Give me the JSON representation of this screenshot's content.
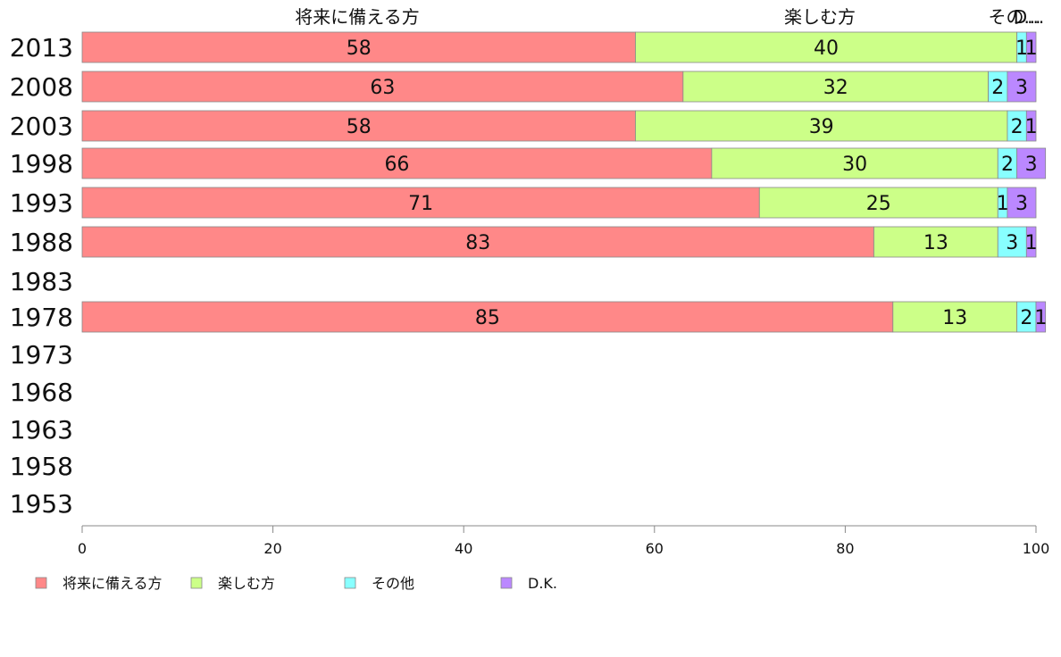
{
  "chart_data": {
    "type": "bar",
    "orientation": "horizontal",
    "stacked": true,
    "categories": [
      "2013",
      "2008",
      "2003",
      "1998",
      "1993",
      "1988",
      "1983",
      "1978",
      "1973",
      "1968",
      "1963",
      "1958",
      "1953"
    ],
    "series": [
      {
        "name": "将来に備える方",
        "color": "#ff8888",
        "values": [
          58,
          63,
          58,
          66,
          71,
          83,
          null,
          85,
          null,
          null,
          null,
          null,
          null
        ]
      },
      {
        "name": "楽しむ方",
        "color": "#ccff88",
        "values": [
          40,
          32,
          39,
          30,
          25,
          13,
          null,
          13,
          null,
          null,
          null,
          null,
          null
        ]
      },
      {
        "name": "その他",
        "color": "#88ffff",
        "values": [
          1,
          2,
          2,
          2,
          1,
          3,
          null,
          2,
          null,
          null,
          null,
          null,
          null
        ]
      },
      {
        "name": "D.K.",
        "color": "#bb88ff",
        "values": [
          1,
          3,
          1,
          3,
          3,
          1,
          null,
          1,
          null,
          null,
          null,
          null,
          null
        ]
      }
    ],
    "top_labels": [
      "将来に備える方",
      "楽しむ方",
      "その...",
      "D..."
    ],
    "xlim": [
      0,
      100
    ],
    "xticks": [
      0,
      20,
      40,
      60,
      80,
      100
    ],
    "grid": false,
    "legend_position": "bottom"
  }
}
